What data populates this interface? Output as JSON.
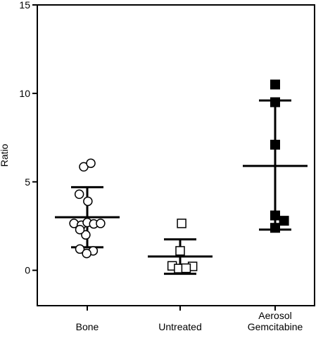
{
  "chart_data": {
    "type": "scatter",
    "title": "",
    "xlabel": "",
    "ylabel": "Ratio",
    "ylim": [
      -2,
      15
    ],
    "yticks": [
      0,
      5,
      10,
      15
    ],
    "grid": false,
    "categories": [
      {
        "lines": [
          "Bone"
        ]
      },
      {
        "lines": [
          "Untreated"
        ]
      },
      {
        "lines": [
          "Aerosol",
          "Gemcitabine"
        ]
      }
    ],
    "series": [
      {
        "marker": "open-circle",
        "color": "#000000",
        "points": [
          {
            "offset": -0.12,
            "value": 5.85
          },
          {
            "offset": 0.12,
            "value": 6.05
          },
          {
            "offset": -0.27,
            "value": 4.3
          },
          {
            "offset": 0.02,
            "value": 3.9
          },
          {
            "offset": -0.45,
            "value": 2.65
          },
          {
            "offset": -0.2,
            "value": 2.55
          },
          {
            "offset": 0.0,
            "value": 2.7
          },
          {
            "offset": 0.22,
            "value": 2.62
          },
          {
            "offset": 0.45,
            "value": 2.65
          },
          {
            "offset": -0.05,
            "value": 2.0
          },
          {
            "offset": -0.25,
            "value": 2.3
          },
          {
            "offset": -0.25,
            "value": 1.2
          },
          {
            "offset": 0.2,
            "value": 1.1
          },
          {
            "offset": -0.02,
            "value": 0.95
          }
        ],
        "mean": 3.0,
        "sd_low": 1.3,
        "sd_high": 4.7
      },
      {
        "marker": "open-square",
        "color": "#000000",
        "points": [
          {
            "offset": 0.05,
            "value": 2.65
          },
          {
            "offset": 0.0,
            "value": 1.1
          },
          {
            "offset": -0.27,
            "value": 0.25
          },
          {
            "offset": 0.42,
            "value": 0.22
          },
          {
            "offset": -0.05,
            "value": 0.1
          },
          {
            "offset": 0.2,
            "value": 0.12
          }
        ],
        "mean": 0.78,
        "sd_low": -0.2,
        "sd_high": 1.75
      },
      {
        "marker": "filled-square",
        "color": "#000000",
        "points": [
          {
            "offset": 0.0,
            "value": 10.5
          },
          {
            "offset": 0.0,
            "value": 9.5
          },
          {
            "offset": 0.0,
            "value": 7.1
          },
          {
            "offset": 0.0,
            "value": 3.1
          },
          {
            "offset": 0.3,
            "value": 2.8
          },
          {
            "offset": 0.0,
            "value": 2.4
          }
        ],
        "mean": 5.9,
        "sd_low": 2.3,
        "sd_high": 9.6
      }
    ]
  }
}
